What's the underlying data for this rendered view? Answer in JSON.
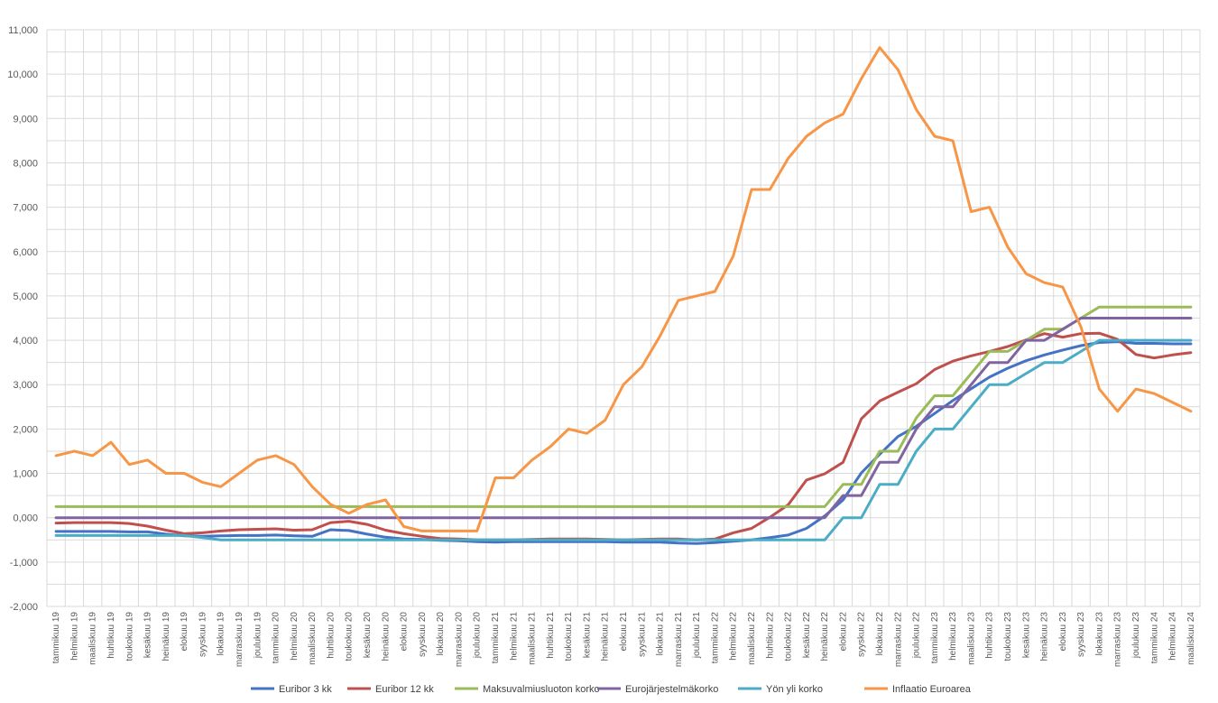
{
  "chart_data": {
    "type": "line",
    "title": "",
    "xlabel": "",
    "ylabel": "",
    "ylim": [
      -2,
      11
    ],
    "ytick_step": 1,
    "ytick_labels": [
      "-2,000",
      "-1,000",
      "0,000",
      "1,000",
      "2,000",
      "3,000",
      "4,000",
      "5,000",
      "6,000",
      "7,000",
      "8,000",
      "9,000",
      "10,000",
      "11,000"
    ],
    "grid": true,
    "legend_position": "bottom",
    "categories": [
      "tammikuu 19",
      "helmikuu 19",
      "maaliskuu 19",
      "huhtikuu 19",
      "toukokuu 19",
      "kesäkuu 19",
      "heinäkuu 19",
      "elokuu 19",
      "syyskuu 19",
      "lokakuu 19",
      "marraskuu 19",
      "joulukuu 19",
      "tammikuu 20",
      "helmikuu 20",
      "maaliskuu 20",
      "huhtikuu 20",
      "toukokuu 20",
      "kesäkuu 20",
      "heinäkuu 20",
      "elokuu 20",
      "syyskuu 20",
      "lokakuu 20",
      "marraskuu 20",
      "joulukuu 20",
      "tammikuu 21",
      "helmikuu 21",
      "maaliskuu 21",
      "huhtikuu 21",
      "toukokuu 21",
      "kesäkuu 21",
      "heinäkuu 21",
      "elokuu 21",
      "syyskuu 21",
      "lokakuu 21",
      "marraskuu 21",
      "joulukuu 21",
      "tammikuu 22",
      "helmikuu 22",
      "maaliskuu 22",
      "huhtikuu 22",
      "toukokuu 22",
      "kesäkuu 22",
      "heinäkuu 22",
      "elokuu 22",
      "syyskuu 22",
      "lokakuu 22",
      "marraskuu 22",
      "joulukuu 22",
      "tammikuu 23",
      "helmikuu 23",
      "maaliskuu 23",
      "huhtikuu 23",
      "toukokuu 23",
      "kesäkuu 23",
      "heinäkuu 23",
      "elokuu 23",
      "syyskuu 23",
      "lokakuu 23",
      "marraskuu 23",
      "joulukuu 23",
      "tammikuu 24",
      "helmikuu 24",
      "maaliskuu 24"
    ],
    "series": [
      {
        "name": "Euribor 3 kk",
        "color": "#4472c4",
        "values": [
          -0.31,
          -0.31,
          -0.31,
          -0.31,
          -0.32,
          -0.32,
          -0.37,
          -0.41,
          -0.42,
          -0.41,
          -0.4,
          -0.4,
          -0.39,
          -0.41,
          -0.42,
          -0.27,
          -0.29,
          -0.37,
          -0.44,
          -0.48,
          -0.49,
          -0.51,
          -0.52,
          -0.54,
          -0.55,
          -0.54,
          -0.54,
          -0.54,
          -0.54,
          -0.54,
          -0.54,
          -0.55,
          -0.55,
          -0.55,
          -0.57,
          -0.58,
          -0.56,
          -0.53,
          -0.5,
          -0.45,
          -0.39,
          -0.24,
          0.04,
          0.4,
          1.01,
          1.43,
          1.83,
          2.06,
          2.35,
          2.64,
          2.91,
          3.17,
          3.37,
          3.54,
          3.67,
          3.78,
          3.88,
          3.95,
          3.97,
          3.93,
          3.93,
          3.92,
          3.92
        ]
      },
      {
        "name": "Euribor 12 kk",
        "color": "#c0504d",
        "values": [
          -0.12,
          -0.11,
          -0.11,
          -0.11,
          -0.13,
          -0.19,
          -0.28,
          -0.36,
          -0.34,
          -0.3,
          -0.27,
          -0.26,
          -0.25,
          -0.28,
          -0.27,
          -0.11,
          -0.08,
          -0.15,
          -0.28,
          -0.36,
          -0.42,
          -0.47,
          -0.48,
          -0.5,
          -0.5,
          -0.5,
          -0.49,
          -0.48,
          -0.48,
          -0.48,
          -0.49,
          -0.5,
          -0.49,
          -0.48,
          -0.48,
          -0.5,
          -0.48,
          -0.34,
          -0.24,
          0.01,
          0.29,
          0.85,
          0.99,
          1.25,
          2.23,
          2.63,
          2.83,
          3.02,
          3.34,
          3.53,
          3.65,
          3.75,
          3.86,
          4.01,
          4.15,
          4.07,
          4.15,
          4.16,
          4.02,
          3.68,
          3.6,
          3.67,
          3.72
        ]
      },
      {
        "name": "Maksuvalmiusluoton korko",
        "color": "#9bbb59",
        "values": [
          0.25,
          0.25,
          0.25,
          0.25,
          0.25,
          0.25,
          0.25,
          0.25,
          0.25,
          0.25,
          0.25,
          0.25,
          0.25,
          0.25,
          0.25,
          0.25,
          0.25,
          0.25,
          0.25,
          0.25,
          0.25,
          0.25,
          0.25,
          0.25,
          0.25,
          0.25,
          0.25,
          0.25,
          0.25,
          0.25,
          0.25,
          0.25,
          0.25,
          0.25,
          0.25,
          0.25,
          0.25,
          0.25,
          0.25,
          0.25,
          0.25,
          0.25,
          0.25,
          0.75,
          0.75,
          1.5,
          1.5,
          2.25,
          2.75,
          2.75,
          3.25,
          3.75,
          3.75,
          4.0,
          4.25,
          4.25,
          4.5,
          4.75,
          4.75,
          4.75,
          4.75,
          4.75,
          4.75
        ]
      },
      {
        "name": "Eurojärjestelmäkorko",
        "color": "#8064a2",
        "values": [
          0,
          0,
          0,
          0,
          0,
          0,
          0,
          0,
          0,
          0,
          0,
          0,
          0,
          0,
          0,
          0,
          0,
          0,
          0,
          0,
          0,
          0,
          0,
          0,
          0,
          0,
          0,
          0,
          0,
          0,
          0,
          0,
          0,
          0,
          0,
          0,
          0,
          0,
          0,
          0,
          0,
          0,
          0,
          0.5,
          0.5,
          1.25,
          1.25,
          2.0,
          2.5,
          2.5,
          3.0,
          3.5,
          3.5,
          4.0,
          4.0,
          4.25,
          4.5,
          4.5,
          4.5,
          4.5,
          4.5,
          4.5,
          4.5
        ]
      },
      {
        "name": "Yön yli korko",
        "color": "#4bacc6",
        "values": [
          -0.4,
          -0.4,
          -0.4,
          -0.4,
          -0.4,
          -0.4,
          -0.4,
          -0.4,
          -0.45,
          -0.5,
          -0.5,
          -0.5,
          -0.5,
          -0.5,
          -0.5,
          -0.5,
          -0.5,
          -0.5,
          -0.5,
          -0.5,
          -0.5,
          -0.5,
          -0.5,
          -0.5,
          -0.5,
          -0.5,
          -0.5,
          -0.5,
          -0.5,
          -0.5,
          -0.5,
          -0.5,
          -0.5,
          -0.5,
          -0.5,
          -0.5,
          -0.5,
          -0.5,
          -0.5,
          -0.5,
          -0.5,
          -0.5,
          -0.5,
          0,
          0,
          0.75,
          0.75,
          1.5,
          2.0,
          2.0,
          2.5,
          3.0,
          3.0,
          3.25,
          3.5,
          3.5,
          3.75,
          4.0,
          4.0,
          4.0,
          4.0,
          4.0,
          4.0
        ]
      },
      {
        "name": "Inflaatio Euroarea",
        "color": "#f79646",
        "values": [
          1.4,
          1.5,
          1.4,
          1.7,
          1.2,
          1.3,
          1.0,
          1.0,
          0.8,
          0.7,
          1.0,
          1.3,
          1.4,
          1.2,
          0.7,
          0.3,
          0.1,
          0.3,
          0.4,
          -0.2,
          -0.3,
          -0.3,
          -0.3,
          -0.3,
          0.9,
          0.9,
          1.3,
          1.6,
          2.0,
          1.9,
          2.2,
          3.0,
          3.4,
          4.1,
          4.9,
          5.0,
          5.1,
          5.9,
          7.4,
          7.4,
          8.1,
          8.6,
          8.9,
          9.1,
          9.9,
          10.6,
          10.1,
          9.2,
          8.6,
          8.5,
          6.9,
          7.0,
          6.1,
          5.5,
          5.3,
          5.2,
          4.3,
          2.9,
          2.4,
          2.9,
          2.8,
          2.6,
          2.4
        ]
      }
    ]
  }
}
